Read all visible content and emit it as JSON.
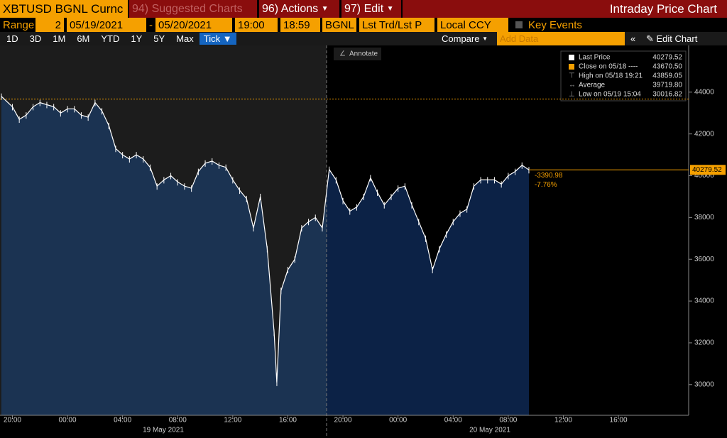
{
  "toolbar": {
    "ticker": "XBTUSD BGNL Curnc",
    "suggested": "94) Suggested Charts",
    "actions": "96) Actions",
    "edit": "97) Edit",
    "title": "Intraday Price Chart"
  },
  "range_bar": {
    "range_label": "Range",
    "range_value": "2",
    "start_date": "05/19/2021",
    "separator": "-",
    "end_date": "05/20/2021",
    "start_time": "19:00",
    "end_time": "18:59",
    "source": "BGNL",
    "field": "Lst Trd/Lst P",
    "currency": "Local CCY",
    "key_events": "Key Events"
  },
  "period_bar": {
    "buttons": [
      "1D",
      "3D",
      "1M",
      "6M",
      "YTD",
      "1Y",
      "5Y",
      "Max",
      "Tick"
    ],
    "compare": "Compare",
    "add_data": "Add Data",
    "edit_chart": "Edit Chart"
  },
  "chart_data": {
    "type": "line",
    "annotate": "Annotate",
    "legend": [
      {
        "label": "Last Price",
        "value": {
          "value": 40279.52,
          "label": "40279.52"
        }
      },
      {
        "label": "Close on 05/18 ----",
        "value": {
          "value": 43670.5,
          "label": "43670.50"
        }
      },
      {
        "label": "High on 05/18 19:21",
        "value": {
          "value": 43859.05,
          "label": "43859.05"
        }
      },
      {
        "label": "Average",
        "value": {
          "value": 39719.8,
          "label": "39719.80"
        }
      },
      {
        "label": "Low on 05/19 15:04",
        "value": {
          "value": 30016.82,
          "label": "30016.82"
        }
      }
    ],
    "change": "-3390.98",
    "change_pct": "-7.76%",
    "x": [
      -4.8,
      -4,
      -3.5,
      -3,
      -2.5,
      -2,
      -1.5,
      -1,
      -0.5,
      0,
      0.5,
      1,
      1.5,
      2,
      2.5,
      3,
      3.5,
      4,
      4.5,
      5,
      5.5,
      6,
      6.5,
      7,
      7.5,
      8,
      8.5,
      9,
      9.5,
      10,
      10.5,
      11,
      11.5,
      12,
      12.5,
      13,
      13.5,
      14,
      14.5,
      15,
      15.2,
      15.5,
      16,
      16.5,
      17,
      17.5,
      18,
      18.5,
      19,
      19.5,
      20,
      20.5,
      21,
      21.5,
      22,
      22.5,
      23,
      23.5,
      24,
      24.5,
      25,
      25.5,
      26,
      26.5,
      27,
      27.5,
      28,
      28.5,
      29,
      29.5,
      30,
      30.5,
      31,
      31.5,
      32,
      32.5,
      33,
      33.5
    ],
    "values": [
      43800,
      43300,
      42700,
      42900,
      43300,
      43500,
      43400,
      43300,
      43000,
      43200,
      43200,
      42900,
      42800,
      43500,
      43100,
      42400,
      41300,
      41000,
      40800,
      41000,
      40800,
      40400,
      39500,
      39800,
      40000,
      39700,
      39500,
      39400,
      40200,
      40600,
      40700,
      40500,
      40400,
      39800,
      39300,
      38900,
      37500,
      39000,
      36500,
      32500,
      30100,
      34500,
      35500,
      36000,
      37500,
      37800,
      38000,
      37500,
      40300,
      39800,
      38800,
      38300,
      38500,
      39000,
      39900,
      39200,
      38600,
      39000,
      39400,
      39500,
      38600,
      37800,
      37000,
      35500,
      36500,
      37200,
      37800,
      38200,
      38400,
      39500,
      39800,
      39800,
      39800,
      39600,
      40000,
      40200,
      40500,
      40279.52
    ],
    "color": "#ffffff",
    "xlim": [
      -4.9,
      45.1
    ],
    "xticks": [
      {
        "value": -4,
        "label": "20:00"
      },
      {
        "value": 0,
        "label": "00:00"
      },
      {
        "value": 4,
        "label": "04:00"
      },
      {
        "value": 8,
        "label": "08:00"
      },
      {
        "value": 12,
        "label": "12:00"
      },
      {
        "value": 16,
        "label": "16:00"
      },
      {
        "value": 20,
        "label": "20:00"
      },
      {
        "value": 24,
        "label": "00:00"
      },
      {
        "value": 28,
        "label": "04:00"
      },
      {
        "value": 32,
        "label": "08:00"
      },
      {
        "value": 36,
        "label": "12:00"
      },
      {
        "value": 40,
        "label": "16:00"
      }
    ],
    "day_labels": [
      "19 May 2021",
      "20 May 2021"
    ],
    "ylim": [
      28600,
      46100
    ],
    "yticks": [
      30000,
      32000,
      34000,
      36000,
      38000,
      40000,
      42000,
      44000
    ]
  }
}
